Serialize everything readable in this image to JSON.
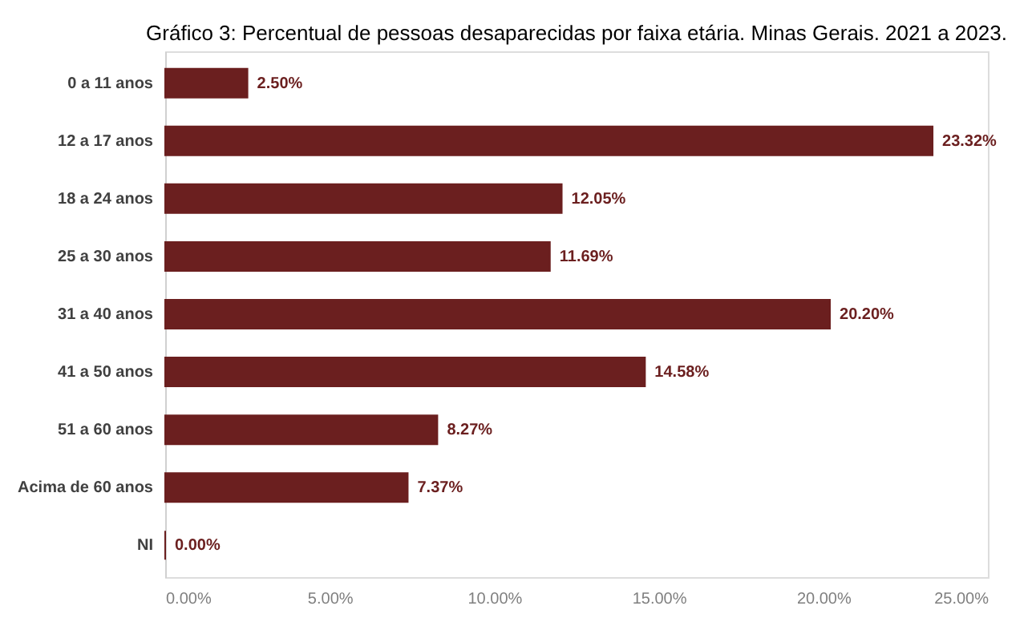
{
  "chart_data": {
    "type": "bar",
    "orientation": "horizontal",
    "title": "Gráfico 3: Percentual de pessoas desaparecidas por faixa etária. Minas Gerais. 2021 a 2023.",
    "categories": [
      "0 a 11 anos",
      "12 a 17 anos",
      "18 a 24 anos",
      "25 a 30 anos",
      "31 a 40 anos",
      "41 a 50 anos",
      "51 a 60 anos",
      "Acima de 60 anos",
      "NI"
    ],
    "values": [
      2.5,
      23.32,
      12.05,
      11.69,
      20.2,
      14.58,
      8.27,
      7.37,
      0.0
    ],
    "value_labels": [
      "2.50%",
      "23.32%",
      "12.05%",
      "11.69%",
      "20.20%",
      "14.58%",
      "8.27%",
      "7.37%",
      "0.00%"
    ],
    "color": "#6b1f1f",
    "xlim": [
      0,
      25
    ],
    "xticks": [
      {
        "value": 0,
        "label": "0.00%"
      },
      {
        "value": 5,
        "label": "5.00%"
      },
      {
        "value": 10,
        "label": "10.00%"
      },
      {
        "value": 15,
        "label": "15.00%"
      },
      {
        "value": 20,
        "label": "20.00%"
      },
      {
        "value": 25,
        "label": "25.00%"
      }
    ],
    "grid": false
  }
}
